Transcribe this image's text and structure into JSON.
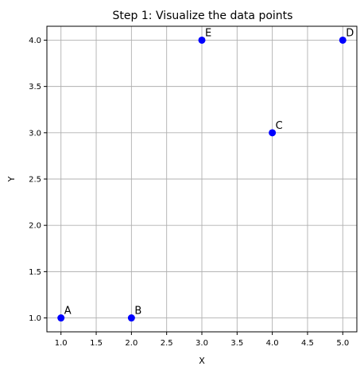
{
  "chart_data": {
    "type": "scatter",
    "title": "Step 1: Visualize the data points",
    "xlabel": "X",
    "ylabel": "Y",
    "xlim": [
      0.8,
      5.2
    ],
    "ylim": [
      0.85,
      4.15
    ],
    "xticks": [
      1.0,
      1.5,
      2.0,
      2.5,
      3.0,
      3.5,
      4.0,
      4.5,
      5.0
    ],
    "yticks": [
      1.0,
      1.5,
      2.0,
      2.5,
      3.0,
      3.5,
      4.0
    ],
    "xtick_labels": [
      "1.0",
      "1.5",
      "2.0",
      "2.5",
      "3.0",
      "3.5",
      "4.0",
      "4.5",
      "5.0"
    ],
    "ytick_labels": [
      "1.0",
      "1.5",
      "2.0",
      "2.5",
      "3.0",
      "3.5",
      "4.0"
    ],
    "grid": true,
    "marker_color": "#0000ff",
    "points": [
      {
        "label": "A",
        "x": 1,
        "y": 1
      },
      {
        "label": "B",
        "x": 2,
        "y": 1
      },
      {
        "label": "C",
        "x": 4,
        "y": 3
      },
      {
        "label": "D",
        "x": 5,
        "y": 4
      },
      {
        "label": "E",
        "x": 3,
        "y": 4
      }
    ]
  }
}
